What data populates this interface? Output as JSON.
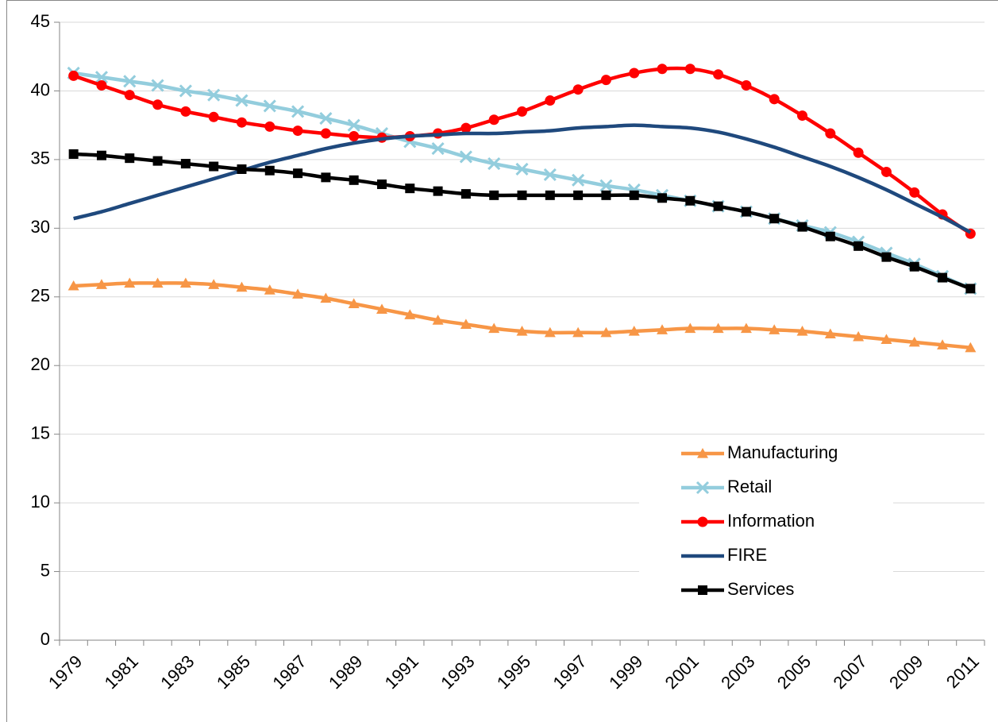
{
  "chart_data": {
    "type": "line",
    "categories": [
      "1979",
      null,
      "1981",
      null,
      "1983",
      null,
      "1985",
      null,
      "1987",
      null,
      "1989",
      null,
      "1991",
      null,
      "1993",
      null,
      "1995",
      null,
      "1997",
      null,
      "1999",
      null,
      "2001",
      null,
      "2003",
      null,
      "2005",
      null,
      "2007",
      null,
      "2009",
      null,
      "2011"
    ],
    "series": [
      {
        "name": "Manufacturing",
        "color": "#f79646",
        "marker": "triangle",
        "values": [
          25.8,
          25.9,
          26.0,
          26.0,
          26.0,
          25.9,
          25.7,
          25.5,
          25.2,
          24.9,
          24.5,
          24.1,
          23.7,
          23.3,
          23.0,
          22.7,
          22.5,
          22.4,
          22.4,
          22.4,
          22.5,
          22.6,
          22.7,
          22.7,
          22.7,
          22.6,
          22.5,
          22.3,
          22.1,
          21.9,
          21.7,
          21.5,
          21.3
        ]
      },
      {
        "name": "Retail",
        "color": "#93cddd",
        "marker": "x",
        "values": [
          41.3,
          41.0,
          40.7,
          40.4,
          40.0,
          39.7,
          39.3,
          38.9,
          38.5,
          38.0,
          37.5,
          36.9,
          36.3,
          35.8,
          35.2,
          34.7,
          34.3,
          33.9,
          33.5,
          33.1,
          32.8,
          32.4,
          32.0,
          31.6,
          31.2,
          30.7,
          30.2,
          29.7,
          29.0,
          28.2,
          27.4,
          26.5,
          25.6
        ]
      },
      {
        "name": "Information",
        "color": "#ff0000",
        "marker": "circle",
        "values": [
          41.1,
          40.4,
          39.7,
          39.0,
          38.5,
          38.1,
          37.7,
          37.4,
          37.1,
          36.9,
          36.7,
          36.6,
          36.7,
          36.9,
          37.3,
          37.9,
          38.5,
          39.3,
          40.1,
          40.8,
          41.3,
          41.6,
          41.6,
          41.2,
          40.4,
          39.4,
          38.2,
          36.9,
          35.5,
          34.1,
          32.6,
          31.0,
          29.6
        ]
      },
      {
        "name": "FIRE",
        "color": "#1f497d",
        "marker": "none",
        "values": [
          30.7,
          31.2,
          31.8,
          32.4,
          33.0,
          33.6,
          34.2,
          34.8,
          35.3,
          35.8,
          36.2,
          36.5,
          36.7,
          36.8,
          36.9,
          36.9,
          37.0,
          37.1,
          37.3,
          37.4,
          37.5,
          37.4,
          37.3,
          37.0,
          36.5,
          35.9,
          35.2,
          34.5,
          33.7,
          32.8,
          31.8,
          30.8,
          29.7
        ]
      },
      {
        "name": "Services",
        "color": "#000000",
        "marker": "square",
        "values": [
          35.4,
          35.3,
          35.1,
          34.9,
          34.7,
          34.5,
          34.3,
          34.2,
          34.0,
          33.7,
          33.5,
          33.2,
          32.9,
          32.7,
          32.5,
          32.4,
          32.4,
          32.4,
          32.4,
          32.4,
          32.4,
          32.2,
          32.0,
          31.6,
          31.2,
          30.7,
          30.1,
          29.4,
          28.7,
          27.9,
          27.2,
          26.4,
          25.6
        ]
      }
    ],
    "ylim": [
      0,
      45
    ],
    "yticks": [
      0,
      5,
      10,
      15,
      20,
      25,
      30,
      35,
      40,
      45
    ],
    "grid": true,
    "smooth": true
  }
}
